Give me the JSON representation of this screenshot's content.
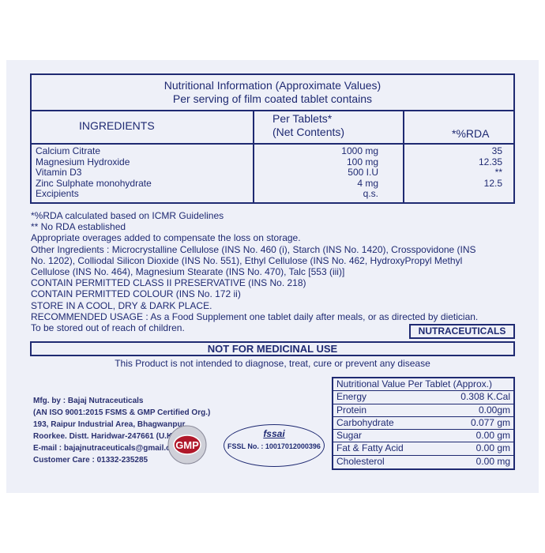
{
  "table": {
    "title1": "Nutritional Information (Approximate Values)",
    "title2": "Per serving of film coated tablet contains",
    "headers": {
      "ingredients": "INGREDIENTS",
      "per1": "Per Tablets*",
      "per2": "(Net Contents)",
      "rda": "*%RDA"
    },
    "rows": [
      {
        "name": "Calcium Citrate",
        "amount": "1000 mg",
        "rda": "35"
      },
      {
        "name": "Magnesium Hydroxide",
        "amount": "100 mg",
        "rda": "12.35"
      },
      {
        "name": "Vitamin D3",
        "amount": "500 I.U",
        "rda": "**"
      },
      {
        "name": "Zinc Sulphate monohydrate",
        "amount": "4 mg",
        "rda": "12.5"
      },
      {
        "name": "Excipients",
        "amount": "q.s.",
        "rda": ""
      }
    ]
  },
  "notes": [
    "*%RDA calculated based on ICMR Guidelines",
    "** No RDA established",
    "Appropriate overages added to compensate the loss on storage.",
    "Other Ingredients : Microcrystalline Cellulose (INS No. 460 (i), Starch (INS No. 1420), Crosspovidone (INS",
    "No. 1202), Colliodal Silicon Dioxide (INS No. 551), Ethyl Cellulose (INS No. 462, HydroxyPropyl Methyl",
    "Cellulose (INS No. 464), Magnesium Stearate (INS No. 470), Talc [553 (iii)]",
    "CONTAIN PERMITTED CLASS II PRESERVATIVE (INS No. 218)",
    "CONTAIN PERMITTED COLOUR (INS No. 172 ii)",
    "STORE IN A COOL, DRY & DARK PLACE.",
    "RECOMMENDED USAGE : As a Food Supplement one tablet daily after meals, or as directed by dietician.",
    "To be stored out of reach of children."
  ],
  "nutraceuticals": "NUTRACEUTICALS",
  "not_medicinal": "NOT FOR MEDICINAL USE",
  "disclaimer": "This Product is not intended to diagnose, treat, cure or prevent any disease",
  "nutrition": {
    "title": "Nutritional Value Per Tablet (Approx.)",
    "rows": [
      {
        "name": "Energy",
        "value": "0.308 K.Cal"
      },
      {
        "name": "Protein",
        "value": "0.00gm"
      },
      {
        "name": "Carbohydrate",
        "value": "0.077 gm"
      },
      {
        "name": "Sugar",
        "value": "0.00 gm"
      },
      {
        "name": "Fat & Fatty Acid",
        "value": "0.00 gm"
      },
      {
        "name": "Cholesterol",
        "value": "0.00 mg"
      }
    ]
  },
  "mfg": [
    "Mfg. by : Bajaj Nutraceuticals",
    "(AN ISO 9001:2015 FSMS & GMP Certified Org.)",
    "193, Raipur Industrial Area, Bhagwanpur,",
    "Roorkee. Distt. Haridwar-247661 (U.K.)",
    "E-mail : bajajnutraceuticals@gmail.com",
    "Customer Care : 01332-235285"
  ],
  "gmp": "GMP",
  "fssai_logo": "fssai",
  "fssl": "FSSL No. : 10017012000396"
}
